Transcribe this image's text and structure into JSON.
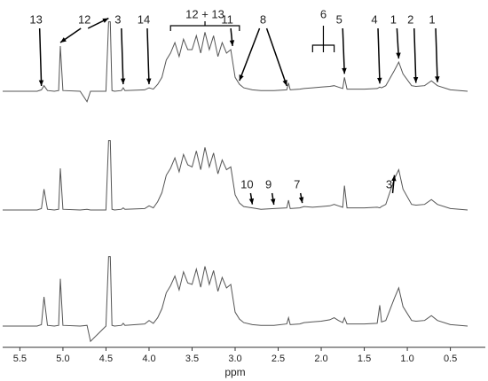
{
  "chart_data": {
    "type": "line",
    "xlabel": "ppm",
    "xlim": [
      5.7,
      0.3
    ],
    "ylim": [
      -25,
      100
    ],
    "xticks": [
      5.5,
      {
        "value": 5,
        "label": "5.0"
      },
      4.5,
      {
        "value": 4,
        "label": "4.0"
      },
      3.5,
      {
        "value": 3,
        "label": "3.0"
      },
      2.5,
      {
        "value": 2,
        "label": "2.0"
      },
      1.5,
      {
        "value": 1,
        "label": "1.0"
      },
      0.5
    ],
    "x": [
      5.7,
      5.3,
      5.25,
      5.22,
      5.18,
      5.1,
      5.05,
      5.03,
      5.0,
      4.8,
      4.72,
      4.68,
      4.5,
      4.47,
      4.45,
      4.43,
      4.4,
      4.32,
      4.3,
      4.28,
      4.05,
      4.0,
      3.95,
      3.9,
      3.85,
      3.8,
      3.75,
      3.7,
      3.65,
      3.6,
      3.55,
      3.5,
      3.45,
      3.4,
      3.35,
      3.3,
      3.25,
      3.2,
      3.15,
      3.1,
      3.05,
      3.0,
      2.95,
      2.9,
      2.8,
      2.7,
      2.55,
      2.4,
      2.38,
      2.36,
      2.25,
      2.2,
      2.1,
      2.0,
      1.9,
      1.85,
      1.8,
      1.75,
      1.73,
      1.7,
      1.6,
      1.5,
      1.35,
      1.32,
      1.3,
      1.25,
      1.15,
      1.1,
      1.05,
      0.95,
      0.9,
      0.8,
      0.72,
      0.65,
      0.5,
      0.3
    ],
    "series": [
      {
        "color": "#555555",
        "values": [
          0,
          0,
          2,
          8,
          1,
          0,
          1,
          65,
          1,
          0,
          -15,
          0,
          0,
          100,
          100,
          1,
          0,
          1,
          5,
          1,
          2,
          5,
          3,
          10,
          20,
          45,
          55,
          70,
          50,
          75,
          60,
          60,
          80,
          55,
          85,
          60,
          80,
          50,
          70,
          55,
          60,
          20,
          10,
          5,
          2,
          1,
          1,
          2,
          12,
          2,
          3,
          4,
          5,
          6,
          7,
          8,
          6,
          4,
          20,
          3,
          3,
          3,
          4,
          6,
          5,
          8,
          30,
          42,
          25,
          8,
          7,
          8,
          15,
          8,
          2,
          0
        ]
      },
      {
        "color": "#555555",
        "values": [
          0,
          0,
          2,
          30,
          1,
          0,
          1,
          60,
          1,
          0,
          1,
          0,
          0,
          100,
          100,
          1,
          0,
          1,
          3,
          1,
          2,
          6,
          3,
          12,
          25,
          50,
          60,
          75,
          55,
          80,
          65,
          62,
          85,
          58,
          90,
          62,
          82,
          52,
          72,
          58,
          62,
          22,
          10,
          5,
          3,
          1,
          2,
          3,
          14,
          2,
          3,
          5,
          4,
          5,
          6,
          8,
          6,
          4,
          35,
          3,
          3,
          3,
          4,
          3,
          5,
          8,
          45,
          58,
          30,
          8,
          7,
          8,
          15,
          8,
          2,
          0
        ]
      },
      {
        "color": "#555555",
        "values": [
          0,
          0,
          2,
          42,
          1,
          0,
          1,
          68,
          1,
          0,
          1,
          -22,
          0,
          100,
          100,
          1,
          0,
          1,
          4,
          1,
          3,
          8,
          4,
          12,
          25,
          48,
          58,
          72,
          52,
          78,
          62,
          60,
          82,
          56,
          86,
          60,
          80,
          50,
          70,
          55,
          60,
          20,
          10,
          5,
          2,
          1,
          1,
          3,
          12,
          2,
          3,
          5,
          6,
          7,
          9,
          12,
          8,
          5,
          12,
          3,
          3,
          3,
          4,
          30,
          6,
          8,
          40,
          55,
          28,
          8,
          7,
          8,
          15,
          8,
          2,
          0
        ]
      }
    ],
    "annotations": [
      {
        "text": "13",
        "x": 5.25,
        "series": 0
      },
      {
        "text": "12",
        "x": [
          5.03,
          4.47
        ],
        "series": 0
      },
      {
        "text": "3",
        "x": 4.3,
        "series": 0
      },
      {
        "text": "14",
        "x": 4.0,
        "series": 0
      },
      {
        "text": "12 + 13",
        "span": [
          3.75,
          2.95
        ],
        "series": 0
      },
      {
        "text": "11",
        "x": 3.03,
        "series": 0
      },
      {
        "text": "8",
        "x": [
          2.4,
          2.95
        ],
        "series": 0
      },
      {
        "text": "6",
        "span": [
          2.1,
          1.85
        ],
        "series": 0
      },
      {
        "text": "5",
        "x": 1.73,
        "series": 0
      },
      {
        "text": "4",
        "x": 1.32,
        "series": 0
      },
      {
        "text": "1",
        "x": 1.1,
        "series": 0
      },
      {
        "text": "2",
        "x": 0.9,
        "series": 0
      },
      {
        "text": "1",
        "x": 0.65,
        "series": 0
      },
      {
        "text": "10",
        "x": 2.8,
        "series": 1
      },
      {
        "text": "9",
        "x": 2.55,
        "series": 1
      },
      {
        "text": "7",
        "x": 2.22,
        "series": 1
      },
      {
        "text": "3",
        "x": 1.15,
        "series": 1
      }
    ]
  }
}
